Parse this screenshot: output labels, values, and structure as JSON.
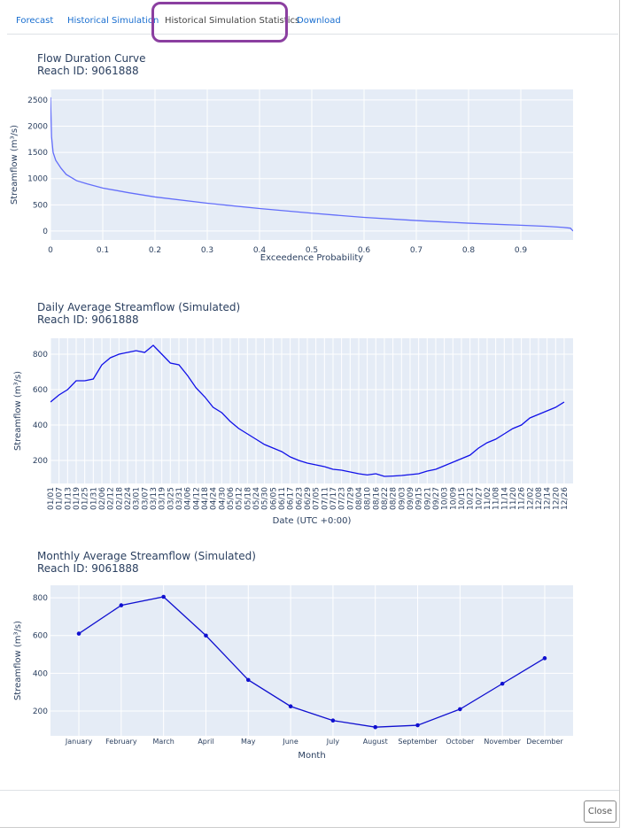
{
  "tabs": [
    "Forecast",
    "Historical Simulation",
    "Historical Simulation Statistics",
    "Download"
  ],
  "close_button": "Close",
  "chart_data": [
    {
      "type": "line",
      "title": "Flow Duration Curve",
      "subtitle": "Reach ID: 9061888",
      "x_label": "Exceedence Probability",
      "y_label": "Streamflow (m³/s)",
      "x": [
        0,
        0.002,
        0.005,
        0.01,
        0.02,
        0.03,
        0.05,
        0.07,
        0.1,
        0.15,
        0.2,
        0.3,
        0.4,
        0.5,
        0.6,
        0.7,
        0.8,
        0.9,
        0.95,
        0.98,
        0.995,
        1.0
      ],
      "values": [
        2550,
        1800,
        1500,
        1350,
        1200,
        1080,
        960,
        900,
        820,
        730,
        650,
        530,
        430,
        340,
        260,
        200,
        150,
        110,
        90,
        70,
        55,
        0
      ],
      "color": "#636efa",
      "markers": false,
      "xlim": [
        0,
        1
      ],
      "xticks": [
        0,
        0.1,
        0.2,
        0.3,
        0.4,
        0.5,
        0.6,
        0.7,
        0.8,
        0.9
      ],
      "ylim": [
        -170,
        2700
      ],
      "yticks": [
        0,
        500,
        1000,
        1500,
        2000,
        2500
      ],
      "grid": true
    },
    {
      "type": "line",
      "title": "Daily Average Streamflow (Simulated)",
      "subtitle": "Reach ID: 9061888",
      "x_label": "Date (UTC +0:00)",
      "y_label": "Streamflow (m³/s)",
      "categories": [
        "01/01",
        "01/07",
        "01/13",
        "01/19",
        "01/25",
        "01/31",
        "02/06",
        "02/12",
        "02/18",
        "02/24",
        "03/01",
        "03/07",
        "03/13",
        "03/19",
        "03/25",
        "03/31",
        "04/06",
        "04/12",
        "04/18",
        "04/24",
        "04/30",
        "05/06",
        "05/12",
        "05/18",
        "05/24",
        "05/30",
        "06/05",
        "06/11",
        "06/17",
        "06/23",
        "06/29",
        "07/05",
        "07/11",
        "07/17",
        "07/23",
        "07/29",
        "08/04",
        "08/10",
        "08/16",
        "08/22",
        "08/28",
        "09/03",
        "09/09",
        "09/15",
        "09/21",
        "09/27",
        "10/03",
        "10/09",
        "10/15",
        "10/21",
        "10/27",
        "11/02",
        "11/08",
        "11/14",
        "11/20",
        "11/26",
        "12/02",
        "12/08",
        "12/14",
        "12/20",
        "12/26"
      ],
      "values": [
        530,
        570,
        600,
        650,
        650,
        660,
        740,
        780,
        800,
        810,
        820,
        810,
        850,
        800,
        750,
        740,
        680,
        610,
        560,
        500,
        470,
        420,
        380,
        350,
        320,
        290,
        270,
        250,
        220,
        200,
        185,
        175,
        165,
        150,
        145,
        135,
        125,
        118,
        125,
        110,
        112,
        115,
        120,
        125,
        140,
        150,
        170,
        190,
        210,
        230,
        270,
        300,
        320,
        350,
        380,
        400,
        440,
        460,
        480,
        500,
        530
      ],
      "color": "#1010e8",
      "markers": false,
      "ylim": [
        70,
        890
      ],
      "yticks": [
        200,
        400,
        600,
        800
      ],
      "grid": true
    },
    {
      "type": "line",
      "title": "Monthly Average Streamflow (Simulated)",
      "subtitle": "Reach ID: 9061888",
      "x_label": "Month",
      "y_label": "Streamflow (m³/s)",
      "categories": [
        "January",
        "February",
        "March",
        "April",
        "May",
        "June",
        "July",
        "August",
        "September",
        "October",
        "November",
        "December"
      ],
      "values": [
        610,
        760,
        805,
        600,
        365,
        225,
        150,
        115,
        125,
        210,
        345,
        480
      ],
      "color": "#1010d0",
      "markers": true,
      "ylim": [
        69,
        866
      ],
      "yticks": [
        200,
        400,
        600,
        800
      ],
      "grid": true
    }
  ]
}
